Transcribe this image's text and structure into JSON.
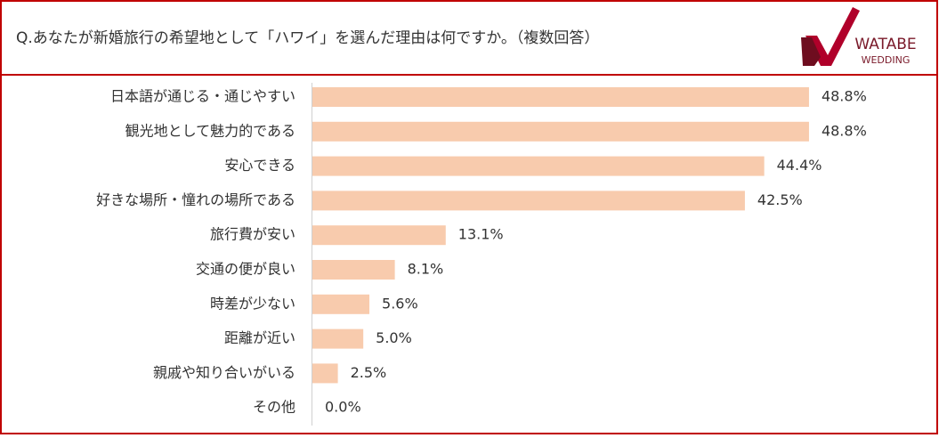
{
  "chart_data": {
    "type": "barh",
    "title": "Q.あなたが新婚旅行の希望地として「ハワイ」を選んだ理由は何ですか。（複数回答）",
    "categories": [
      "日本語が通じる・通じやすい",
      "観光地として魅力的である",
      "安心できる",
      "好きな場所・憧れの場所である",
      "旅行費が安い",
      "交通の便が良い",
      "時差が少ない",
      "距離が近い",
      "親戚や知り合いがいる",
      "その他"
    ],
    "values": [
      48.8,
      48.8,
      44.4,
      42.5,
      13.1,
      8.1,
      5.6,
      5.0,
      2.5,
      0.0
    ],
    "value_labels": [
      "48.8%",
      "48.8%",
      "44.4%",
      "42.5%",
      "13.1%",
      "8.1%",
      "5.6%",
      "5.0%",
      "2.5%",
      "0.0%"
    ],
    "color": "#f8cbad",
    "xlim": [
      0,
      60
    ]
  },
  "logo": {
    "line1": "WATABE",
    "line2": "WEDDING"
  }
}
